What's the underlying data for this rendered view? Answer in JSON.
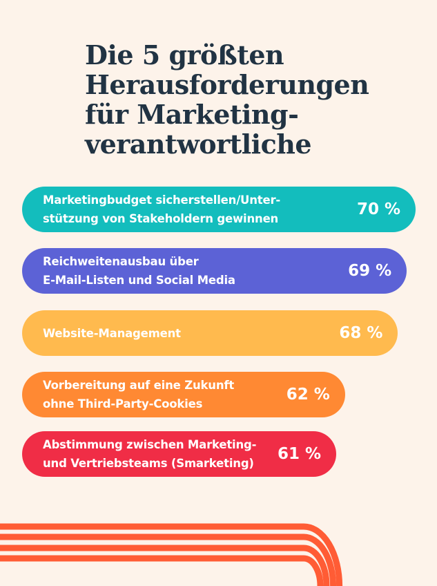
{
  "title_lines": [
    "Die 5 größten",
    "Herausforderungen",
    "für Marketing-",
    "verantwortliche"
  ],
  "chart_data": {
    "type": "bar",
    "orientation": "horizontal",
    "title": "Die 5 größten Herausforderungen für Marketingverantwortliche",
    "categories": [
      "Marketingbudget sicherstellen/Unterstützung von Stakeholdern gewinnen",
      "Reichweitenausbau über E-Mail-Listen und Social Media",
      "Website-Management",
      "Vorbereitung auf eine Zukunft ohne Third-Party-Cookies",
      "Abstimmung zwischen Marketing- und Vertriebsteams (Smarketing)"
    ],
    "values": [
      70,
      69,
      68,
      62,
      61
    ],
    "unit": "%",
    "xlabel": "",
    "ylabel": "",
    "grid": false,
    "legend": "none",
    "bars": [
      {
        "label_lines": [
          "Marketingbudget sicherstellen/Unter-",
          "stützung von Stakeholdern gewinnen"
        ],
        "value": 70,
        "value_label": "70 %",
        "color": "#13bdbd"
      },
      {
        "label_lines": [
          "Reichweitenausbau über",
          "E-Mail-Listen und Social Media"
        ],
        "value": 69,
        "value_label": "69 %",
        "color": "#5c62d6"
      },
      {
        "label_lines": [
          "Website-Management"
        ],
        "value": 68,
        "value_label": "68 %",
        "color": "#ffba4e"
      },
      {
        "label_lines": [
          "Vorbereitung auf eine Zukunft",
          "ohne Third-Party-Cookies"
        ],
        "value": 62,
        "value_label": "62 %",
        "color": "#ff8933"
      },
      {
        "label_lines": [
          "Abstimmung zwischen Marketing-",
          "und Vertriebsteams (Smarketing)"
        ],
        "value": 61,
        "value_label": "61 %",
        "color": "#f02d46"
      }
    ]
  },
  "colors": {
    "background": "#fdf3ea",
    "title": "#213343",
    "decoration": "#ff5c35"
  }
}
